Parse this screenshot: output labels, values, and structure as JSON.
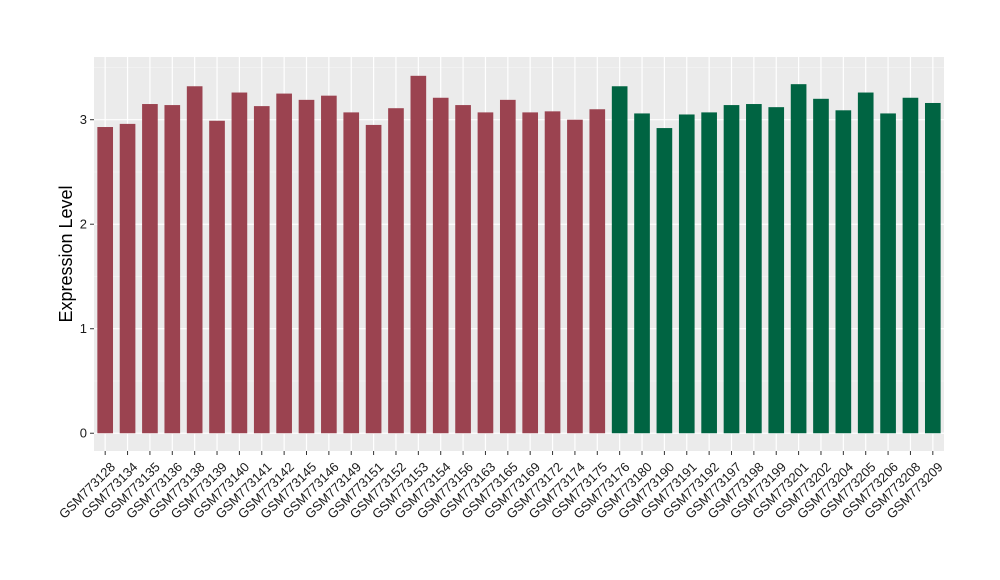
{
  "chart_data": {
    "type": "bar",
    "ylabel": "Expression Level",
    "xlabel": "",
    "ylim": [
      -0.17,
      3.6
    ],
    "yticks": [
      0,
      1,
      2,
      3
    ],
    "categories": [
      "GSM773128",
      "GSM773134",
      "GSM773135",
      "GSM773136",
      "GSM773138",
      "GSM773139",
      "GSM773140",
      "GSM773141",
      "GSM773142",
      "GSM773145",
      "GSM773146",
      "GSM773149",
      "GSM773151",
      "GSM773152",
      "GSM773153",
      "GSM773154",
      "GSM773156",
      "GSM773163",
      "GSM773165",
      "GSM773169",
      "GSM773172",
      "GSM773174",
      "GSM773175",
      "GSM773176",
      "GSM773180",
      "GSM773190",
      "GSM773191",
      "GSM773192",
      "GSM773197",
      "GSM773198",
      "GSM773199",
      "GSM773201",
      "GSM773202",
      "GSM773204",
      "GSM773205",
      "GSM773206",
      "GSM773208",
      "GSM773209"
    ],
    "values": [
      2.93,
      2.96,
      3.15,
      3.14,
      3.32,
      2.99,
      3.26,
      3.13,
      3.25,
      3.19,
      3.23,
      3.07,
      2.95,
      3.11,
      3.42,
      3.21,
      3.14,
      3.07,
      3.19,
      3.07,
      3.08,
      3.0,
      3.1,
      3.32,
      3.06,
      2.92,
      3.05,
      3.07,
      3.14,
      3.15,
      3.12,
      3.34,
      3.2,
      3.09,
      3.26,
      3.06,
      3.21,
      3.16
    ],
    "groups": [
      0,
      0,
      0,
      0,
      0,
      0,
      0,
      0,
      0,
      0,
      0,
      0,
      0,
      0,
      0,
      0,
      0,
      0,
      0,
      0,
      0,
      0,
      0,
      1,
      1,
      1,
      1,
      1,
      1,
      1,
      1,
      1,
      1,
      1,
      1,
      1,
      1,
      1
    ],
    "colors": [
      "#9b4350",
      "#006442"
    ],
    "panel_background": "#ebebeb",
    "grid": true,
    "legend": "none"
  }
}
